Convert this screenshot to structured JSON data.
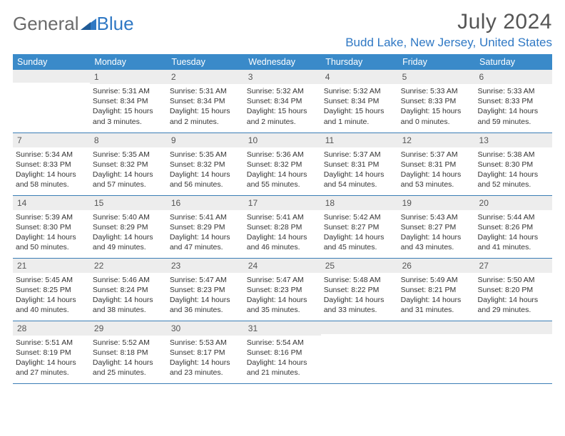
{
  "brand": {
    "part1": "General",
    "part2": "Blue"
  },
  "title": {
    "month": "July 2024",
    "location": "Budd Lake, New Jersey, United States"
  },
  "colors": {
    "header_bg": "#3a8ac9",
    "header_text": "#ffffff",
    "row_border": "#3a7db5",
    "daynum_bg": "#ededed",
    "brand_gray": "#6a6a6a",
    "brand_blue": "#2f78c4"
  },
  "weekdays": [
    "Sunday",
    "Monday",
    "Tuesday",
    "Wednesday",
    "Thursday",
    "Friday",
    "Saturday"
  ],
  "weeks": [
    [
      {
        "n": "",
        "sr": "",
        "ss": "",
        "dl": ""
      },
      {
        "n": "1",
        "sr": "Sunrise: 5:31 AM",
        "ss": "Sunset: 8:34 PM",
        "dl": "Daylight: 15 hours and 3 minutes."
      },
      {
        "n": "2",
        "sr": "Sunrise: 5:31 AM",
        "ss": "Sunset: 8:34 PM",
        "dl": "Daylight: 15 hours and 2 minutes."
      },
      {
        "n": "3",
        "sr": "Sunrise: 5:32 AM",
        "ss": "Sunset: 8:34 PM",
        "dl": "Daylight: 15 hours and 2 minutes."
      },
      {
        "n": "4",
        "sr": "Sunrise: 5:32 AM",
        "ss": "Sunset: 8:34 PM",
        "dl": "Daylight: 15 hours and 1 minute."
      },
      {
        "n": "5",
        "sr": "Sunrise: 5:33 AM",
        "ss": "Sunset: 8:33 PM",
        "dl": "Daylight: 15 hours and 0 minutes."
      },
      {
        "n": "6",
        "sr": "Sunrise: 5:33 AM",
        "ss": "Sunset: 8:33 PM",
        "dl": "Daylight: 14 hours and 59 minutes."
      }
    ],
    [
      {
        "n": "7",
        "sr": "Sunrise: 5:34 AM",
        "ss": "Sunset: 8:33 PM",
        "dl": "Daylight: 14 hours and 58 minutes."
      },
      {
        "n": "8",
        "sr": "Sunrise: 5:35 AM",
        "ss": "Sunset: 8:32 PM",
        "dl": "Daylight: 14 hours and 57 minutes."
      },
      {
        "n": "9",
        "sr": "Sunrise: 5:35 AM",
        "ss": "Sunset: 8:32 PM",
        "dl": "Daylight: 14 hours and 56 minutes."
      },
      {
        "n": "10",
        "sr": "Sunrise: 5:36 AM",
        "ss": "Sunset: 8:32 PM",
        "dl": "Daylight: 14 hours and 55 minutes."
      },
      {
        "n": "11",
        "sr": "Sunrise: 5:37 AM",
        "ss": "Sunset: 8:31 PM",
        "dl": "Daylight: 14 hours and 54 minutes."
      },
      {
        "n": "12",
        "sr": "Sunrise: 5:37 AM",
        "ss": "Sunset: 8:31 PM",
        "dl": "Daylight: 14 hours and 53 minutes."
      },
      {
        "n": "13",
        "sr": "Sunrise: 5:38 AM",
        "ss": "Sunset: 8:30 PM",
        "dl": "Daylight: 14 hours and 52 minutes."
      }
    ],
    [
      {
        "n": "14",
        "sr": "Sunrise: 5:39 AM",
        "ss": "Sunset: 8:30 PM",
        "dl": "Daylight: 14 hours and 50 minutes."
      },
      {
        "n": "15",
        "sr": "Sunrise: 5:40 AM",
        "ss": "Sunset: 8:29 PM",
        "dl": "Daylight: 14 hours and 49 minutes."
      },
      {
        "n": "16",
        "sr": "Sunrise: 5:41 AM",
        "ss": "Sunset: 8:29 PM",
        "dl": "Daylight: 14 hours and 47 minutes."
      },
      {
        "n": "17",
        "sr": "Sunrise: 5:41 AM",
        "ss": "Sunset: 8:28 PM",
        "dl": "Daylight: 14 hours and 46 minutes."
      },
      {
        "n": "18",
        "sr": "Sunrise: 5:42 AM",
        "ss": "Sunset: 8:27 PM",
        "dl": "Daylight: 14 hours and 45 minutes."
      },
      {
        "n": "19",
        "sr": "Sunrise: 5:43 AM",
        "ss": "Sunset: 8:27 PM",
        "dl": "Daylight: 14 hours and 43 minutes."
      },
      {
        "n": "20",
        "sr": "Sunrise: 5:44 AM",
        "ss": "Sunset: 8:26 PM",
        "dl": "Daylight: 14 hours and 41 minutes."
      }
    ],
    [
      {
        "n": "21",
        "sr": "Sunrise: 5:45 AM",
        "ss": "Sunset: 8:25 PM",
        "dl": "Daylight: 14 hours and 40 minutes."
      },
      {
        "n": "22",
        "sr": "Sunrise: 5:46 AM",
        "ss": "Sunset: 8:24 PM",
        "dl": "Daylight: 14 hours and 38 minutes."
      },
      {
        "n": "23",
        "sr": "Sunrise: 5:47 AM",
        "ss": "Sunset: 8:23 PM",
        "dl": "Daylight: 14 hours and 36 minutes."
      },
      {
        "n": "24",
        "sr": "Sunrise: 5:47 AM",
        "ss": "Sunset: 8:23 PM",
        "dl": "Daylight: 14 hours and 35 minutes."
      },
      {
        "n": "25",
        "sr": "Sunrise: 5:48 AM",
        "ss": "Sunset: 8:22 PM",
        "dl": "Daylight: 14 hours and 33 minutes."
      },
      {
        "n": "26",
        "sr": "Sunrise: 5:49 AM",
        "ss": "Sunset: 8:21 PM",
        "dl": "Daylight: 14 hours and 31 minutes."
      },
      {
        "n": "27",
        "sr": "Sunrise: 5:50 AM",
        "ss": "Sunset: 8:20 PM",
        "dl": "Daylight: 14 hours and 29 minutes."
      }
    ],
    [
      {
        "n": "28",
        "sr": "Sunrise: 5:51 AM",
        "ss": "Sunset: 8:19 PM",
        "dl": "Daylight: 14 hours and 27 minutes."
      },
      {
        "n": "29",
        "sr": "Sunrise: 5:52 AM",
        "ss": "Sunset: 8:18 PM",
        "dl": "Daylight: 14 hours and 25 minutes."
      },
      {
        "n": "30",
        "sr": "Sunrise: 5:53 AM",
        "ss": "Sunset: 8:17 PM",
        "dl": "Daylight: 14 hours and 23 minutes."
      },
      {
        "n": "31",
        "sr": "Sunrise: 5:54 AM",
        "ss": "Sunset: 8:16 PM",
        "dl": "Daylight: 14 hours and 21 minutes."
      },
      {
        "n": "",
        "sr": "",
        "ss": "",
        "dl": ""
      },
      {
        "n": "",
        "sr": "",
        "ss": "",
        "dl": ""
      },
      {
        "n": "",
        "sr": "",
        "ss": "",
        "dl": ""
      }
    ]
  ]
}
